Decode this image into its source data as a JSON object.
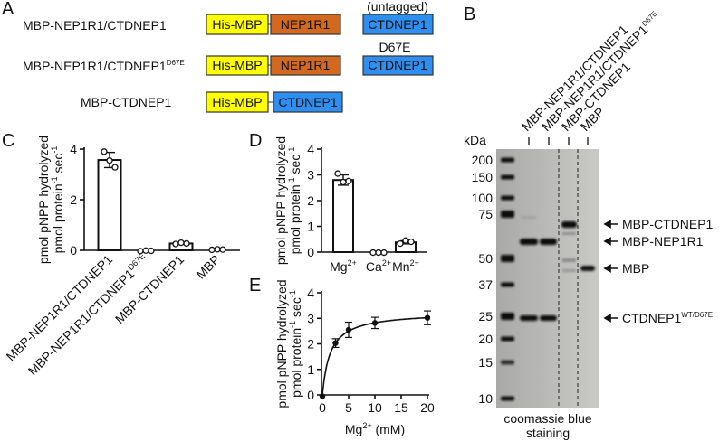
{
  "panels": {
    "A": {
      "letter": "A",
      "rows": [
        {
          "name": "MBP-NEP1R1/CTDNEP1",
          "sup": ""
        },
        {
          "name": "MBP-NEP1R1/CTDNEP1",
          "sup": "D67E"
        },
        {
          "name": "MBP-CTDNEP1",
          "sup": ""
        }
      ],
      "domains": {
        "his_mbp": "His-MBP",
        "nep1r1": "NEP1R1",
        "ctdnep1": "CTDNEP1"
      },
      "untagged": "(untagged)",
      "mutation": "D67E",
      "colors": {
        "his_mbp": "#ffff00",
        "nep1r1": "#d2691e",
        "ctdnep1": "#2f8ff0"
      }
    },
    "B": {
      "letter": "B",
      "lanes": [
        {
          "name": "MBP-NEP1R1/CTDNEP1",
          "sup": ""
        },
        {
          "name": "MBP-NEP1R1/CTDNEP1",
          "sup": "D67E"
        },
        {
          "name": "MBP-CTDNEP1",
          "sup": ""
        },
        {
          "name": "MBP",
          "sup": ""
        }
      ],
      "kda_label": "kDa",
      "markers": [
        "200",
        "150",
        "100",
        "75",
        "50",
        "37",
        "25",
        "20",
        "15",
        "10"
      ],
      "band_labels": [
        {
          "name": "MBP-CTDNEP1",
          "sup": ""
        },
        {
          "name": "MBP-NEP1R1",
          "sup": ""
        },
        {
          "name": "MBP",
          "sup": ""
        },
        {
          "name": "CTDNEP1",
          "sup": "WT/D67E"
        }
      ],
      "caption_line1": "coomassie blue",
      "caption_line2": "staining"
    },
    "C": {
      "letter": "C"
    },
    "D": {
      "letter": "D"
    },
    "E": {
      "letter": "E"
    }
  },
  "chart_data": [
    {
      "id": "C",
      "type": "bar",
      "ylabel_line1": "pmol pNPP hydrolyzed",
      "ylabel_line2": "pmol protein",
      "ylabel_sup": "-1",
      "ylabel_tail": " sec",
      "ylabel_sup2": "-1",
      "categories": [
        "MBP-NEP1R1/CTDNEP1",
        "MBP-NEP1R1/CTDNEP1D67E",
        "MBP-CTDNEP1",
        "MBP"
      ],
      "values": [
        3.57,
        -0.02,
        0.27,
        0.03
      ],
      "errors": [
        0.3,
        0.02,
        0.03,
        0.02
      ],
      "points": [
        [
          3.9,
          3.55,
          3.28
        ],
        [
          -0.03,
          -0.01,
          -0.02
        ],
        [
          0.25,
          0.3,
          0.27
        ],
        [
          0.02,
          0.04,
          0.03
        ]
      ],
      "ylim": [
        0,
        4
      ],
      "yticks": [
        "0",
        "2",
        "4"
      ]
    },
    {
      "id": "D",
      "type": "bar",
      "ylabel_line1": "pmol pNPP hydrolyzed",
      "ylabel_line2": "pmol protein",
      "ylabel_sup": "-1",
      "ylabel_tail": " sec",
      "ylabel_sup2": "-1",
      "categories": [
        {
          "base": "Mg",
          "sup": "2+"
        },
        {
          "base": "Ca",
          "sup": "2+"
        },
        {
          "base": "Mn",
          "sup": "2+"
        }
      ],
      "values": [
        2.8,
        -0.02,
        0.38
      ],
      "errors": [
        0.2,
        0.01,
        0.06
      ],
      "points": [
        [
          3.05,
          2.72,
          2.76
        ],
        [
          -0.02,
          -0.02,
          -0.02
        ],
        [
          0.33,
          0.45,
          0.4
        ]
      ],
      "ylim": [
        0,
        4
      ],
      "yticks": [
        "0",
        "1",
        "2",
        "3",
        "4"
      ]
    },
    {
      "id": "E",
      "type": "scatter",
      "ylabel_line1": "pmol pNPP hydrolyzed",
      "ylabel_line2": "pmol protein",
      "ylabel_sup": "-1",
      "ylabel_tail": " sec",
      "ylabel_sup2": "-1",
      "xlabel_base": "Mg",
      "xlabel_sup": "2+",
      "xlabel_tail": " (mM)",
      "x": [
        0,
        2.5,
        5,
        10,
        20
      ],
      "y": [
        -0.05,
        2.03,
        2.55,
        2.82,
        3.02
      ],
      "errors": [
        0.02,
        0.17,
        0.3,
        0.22,
        0.27
      ],
      "fit": {
        "model": "Michaelis-Menten",
        "vmax": 3.25,
        "km": 1.5
      },
      "xlim": [
        0,
        20
      ],
      "ylim": [
        0,
        4
      ],
      "xticks": [
        "0",
        "5",
        "10",
        "15",
        "20"
      ],
      "yticks": [
        "0",
        "1",
        "2",
        "3",
        "4"
      ]
    }
  ]
}
